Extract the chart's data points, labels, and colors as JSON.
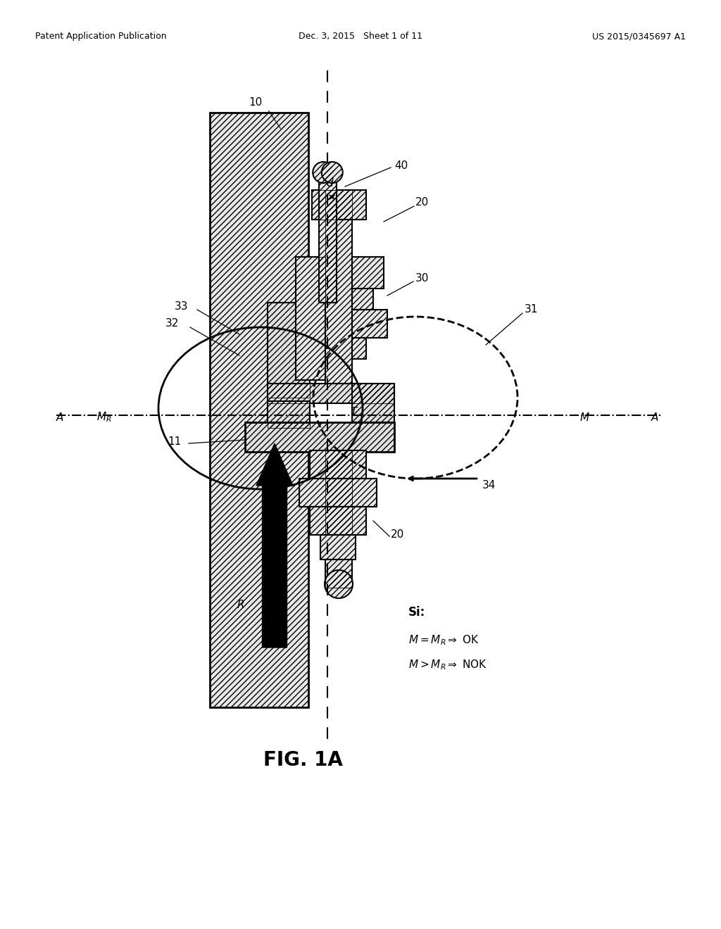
{
  "bg_color": "#ffffff",
  "header_left": "Patent Application Publication",
  "header_center": "Dec. 3, 2015   Sheet 1 of 11",
  "header_right": "US 2015/0345697 A1",
  "fig_label": "FIG. 1A"
}
